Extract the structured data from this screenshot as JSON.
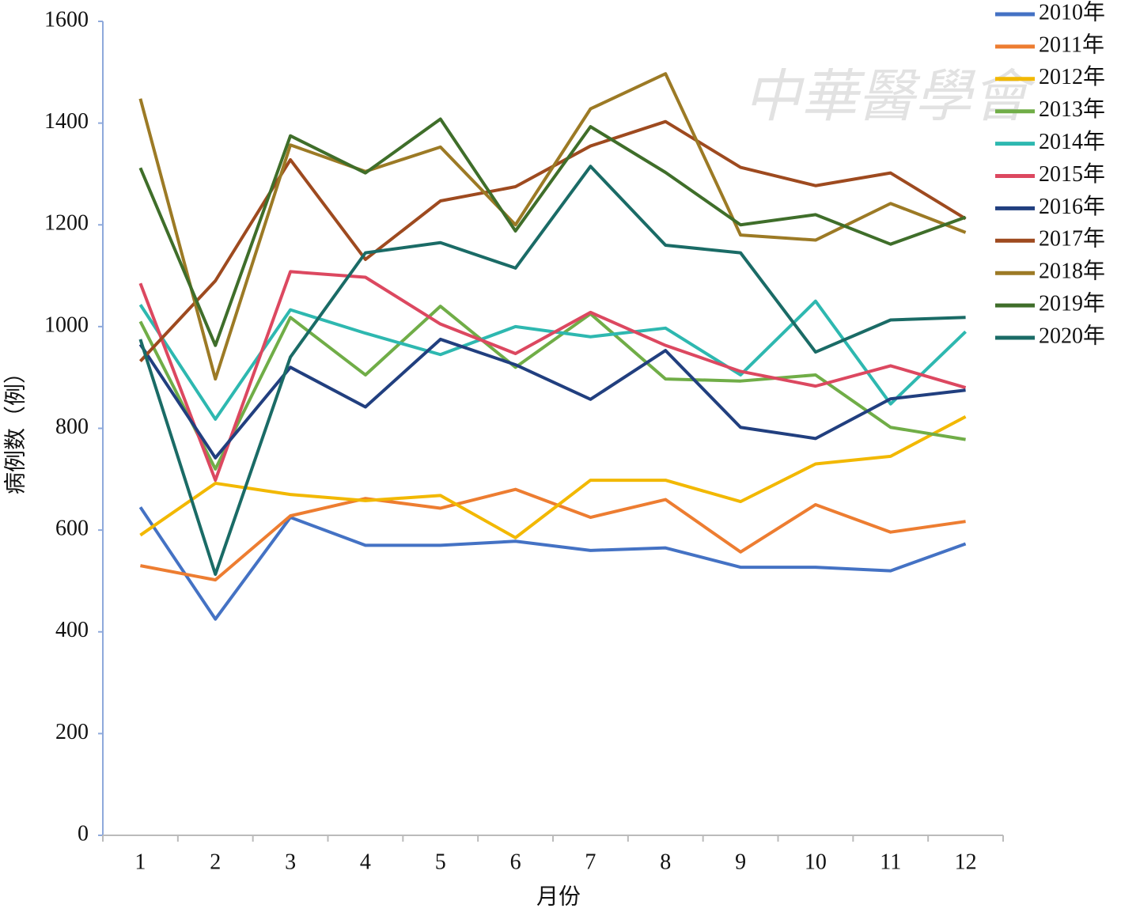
{
  "chart_data": {
    "type": "line",
    "watermark": "中華醫學會",
    "x_label": "月份",
    "y_label": "病例数（例）",
    "categories": [
      "1",
      "2",
      "3",
      "4",
      "5",
      "6",
      "7",
      "8",
      "9",
      "10",
      "11",
      "12"
    ],
    "ylim": [
      0,
      1600
    ],
    "yticks": [
      0,
      200,
      400,
      600,
      800,
      1000,
      1200,
      1400,
      1600
    ],
    "legend": "right",
    "series": [
      {
        "name": "2010年",
        "color": "#4472c4",
        "values": [
          645,
          425,
          625,
          570,
          570,
          578,
          560,
          565,
          527,
          527,
          520,
          573
        ]
      },
      {
        "name": "2011年",
        "color": "#ed7d31",
        "values": [
          530,
          502,
          628,
          662,
          643,
          680,
          625,
          660,
          557,
          650,
          596,
          617
        ]
      },
      {
        "name": "2012年",
        "color": "#f2b800",
        "values": [
          590,
          692,
          670,
          658,
          668,
          585,
          698,
          698,
          656,
          730,
          745,
          823
        ]
      },
      {
        "name": "2013年",
        "color": "#70ad47",
        "values": [
          1010,
          720,
          1018,
          905,
          1040,
          920,
          1025,
          897,
          893,
          905,
          802,
          778
        ]
      },
      {
        "name": "2014年",
        "color": "#2eb8b0",
        "values": [
          1043,
          818,
          1033,
          987,
          945,
          1000,
          980,
          997,
          905,
          1050,
          848,
          990
        ]
      },
      {
        "name": "2015年",
        "color": "#dc4860",
        "values": [
          1085,
          698,
          1108,
          1097,
          1005,
          947,
          1028,
          963,
          912,
          883,
          923,
          880
        ]
      },
      {
        "name": "2016年",
        "color": "#213f7f",
        "values": [
          965,
          742,
          920,
          842,
          975,
          925,
          857,
          953,
          802,
          780,
          858,
          875
        ]
      },
      {
        "name": "2017年",
        "color": "#9e4a1f",
        "values": [
          932,
          1090,
          1328,
          1132,
          1247,
          1275,
          1355,
          1403,
          1313,
          1277,
          1302,
          1212
        ]
      },
      {
        "name": "2018年",
        "color": "#9c7a25",
        "values": [
          1448,
          897,
          1357,
          1305,
          1353,
          1200,
          1428,
          1497,
          1180,
          1170,
          1242,
          1185
        ]
      },
      {
        "name": "2019年",
        "color": "#3f6e2a",
        "values": [
          1312,
          963,
          1375,
          1302,
          1408,
          1188,
          1393,
          1303,
          1200,
          1220,
          1162,
          1215
        ]
      },
      {
        "name": "2020年",
        "color": "#1a6b66",
        "values": [
          975,
          513,
          940,
          1145,
          1165,
          1115,
          1315,
          1160,
          1145,
          950,
          1013,
          1018
        ]
      }
    ]
  }
}
